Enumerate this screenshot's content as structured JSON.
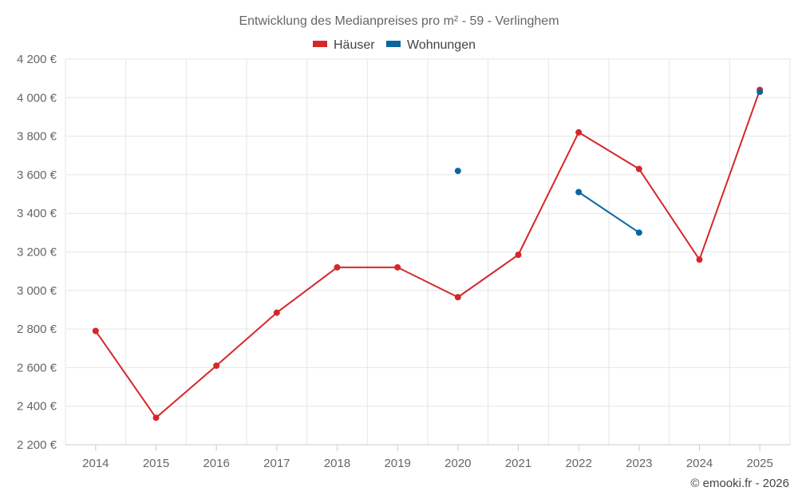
{
  "chart_data": {
    "type": "line",
    "title": "Entwicklung des Medianpreises pro m² - 59 - Verlinghem",
    "categories": [
      "2014",
      "2015",
      "2016",
      "2017",
      "2018",
      "2019",
      "2020",
      "2021",
      "2022",
      "2023",
      "2024",
      "2025"
    ],
    "ylim": [
      2200,
      4200
    ],
    "yticks": [
      2200,
      2400,
      2600,
      2800,
      3000,
      3200,
      3400,
      3600,
      3800,
      4000,
      4200
    ],
    "ytick_labels": [
      "2 200 €",
      "2 400 €",
      "2 600 €",
      "2 800 €",
      "3 000 €",
      "3 200 €",
      "3 400 €",
      "3 600 €",
      "3 800 €",
      "4 000 €",
      "4 200 €"
    ],
    "series": [
      {
        "name": "Häuser",
        "color": "#d62728",
        "values": [
          2790,
          2340,
          2610,
          2885,
          3120,
          3120,
          2965,
          3185,
          3820,
          3630,
          3160,
          4040
        ]
      },
      {
        "name": "Wohnungen",
        "color": "#0a66a0",
        "values": [
          null,
          null,
          null,
          null,
          null,
          null,
          3620,
          null,
          3510,
          3300,
          null,
          4030
        ]
      }
    ],
    "grid": true,
    "legend_position": "top-center"
  },
  "credit": "© emooki.fr - 2026"
}
